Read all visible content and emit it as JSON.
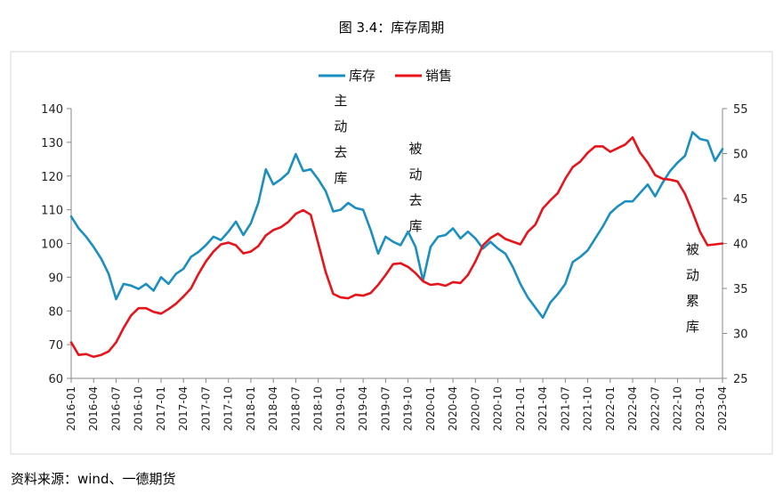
{
  "title": "图 3.4：库存周期",
  "source": "资料来源：wind、一德期货",
  "chart_data": {
    "type": "line",
    "dates": [
      "2016-01",
      "2016-02",
      "2016-03",
      "2016-04",
      "2016-05",
      "2016-06",
      "2016-07",
      "2016-08",
      "2016-09",
      "2016-10",
      "2016-11",
      "2016-12",
      "2017-01",
      "2017-02",
      "2017-03",
      "2017-04",
      "2017-05",
      "2017-06",
      "2017-07",
      "2017-08",
      "2017-09",
      "2017-10",
      "2017-11",
      "2017-12",
      "2018-01",
      "2018-02",
      "2018-03",
      "2018-04",
      "2018-05",
      "2018-06",
      "2018-07",
      "2018-08",
      "2018-09",
      "2018-10",
      "2018-11",
      "2018-12",
      "2019-01",
      "2019-02",
      "2019-03",
      "2019-04",
      "2019-05",
      "2019-06",
      "2019-07",
      "2019-08",
      "2019-09",
      "2019-10",
      "2019-11",
      "2019-12",
      "2020-01",
      "2020-02",
      "2020-03",
      "2020-04",
      "2020-05",
      "2020-06",
      "2020-07",
      "2020-08",
      "2020-09",
      "2020-10",
      "2020-11",
      "2020-12",
      "2021-01",
      "2021-02",
      "2021-03",
      "2021-04",
      "2021-05",
      "2021-06",
      "2021-07",
      "2021-08",
      "2021-09",
      "2021-10",
      "2021-11",
      "2021-12",
      "2022-01",
      "2022-02",
      "2022-03",
      "2022-04",
      "2022-05",
      "2022-06",
      "2022-07",
      "2022-08",
      "2022-09",
      "2022-10",
      "2022-11",
      "2022-12",
      "2023-01",
      "2023-02",
      "2023-03",
      "2023-04"
    ],
    "tick_labels": [
      "2016-01",
      "2016-04",
      "2016-07",
      "2016-10",
      "2017-01",
      "2017-04",
      "2017-07",
      "2017-10",
      "2018-01",
      "2018-04",
      "2018-07",
      "2018-10",
      "2019-01",
      "2019-04",
      "2019-07",
      "2019-10",
      "2020-01",
      "2020-04",
      "2020-07",
      "2020-10",
      "2021-01",
      "2021-04",
      "2021-07",
      "2021-10",
      "2022-01",
      "2022-04",
      "2022-07",
      "2022-10",
      "2023-01",
      "2023-04"
    ],
    "left_axis": {
      "min": 60,
      "max": 140,
      "step": 10,
      "labels": [
        "60",
        "70",
        "80",
        "90",
        "100",
        "110",
        "120",
        "130",
        "140"
      ]
    },
    "right_axis": {
      "min": 25,
      "max": 55,
      "step": 5,
      "labels": [
        "25",
        "30",
        "35",
        "40",
        "45",
        "50",
        "55"
      ]
    },
    "series": [
      {
        "name": "库存",
        "axis": "left",
        "color": "#1a8fc0",
        "values": [
          108,
          104.5,
          102,
          99,
          95.5,
          91,
          83.5,
          88,
          87.5,
          86.5,
          88,
          86,
          90,
          88,
          91,
          92.5,
          96,
          97.5,
          99.5,
          102,
          101,
          103.5,
          106.5,
          102.5,
          106,
          112,
          122,
          117.5,
          119,
          121,
          126.5,
          121.5,
          122,
          119,
          115.5,
          109.5,
          110,
          112,
          110.5,
          110,
          104,
          97,
          102,
          100.5,
          99.5,
          103.5,
          99,
          89,
          99,
          102,
          102.5,
          104.5,
          101.5,
          103.5,
          101.5,
          98.5,
          100.5,
          98.5,
          97,
          93,
          88,
          84,
          81,
          78,
          82.5,
          85,
          88,
          94.5,
          96,
          98,
          101.5,
          105,
          109,
          111,
          112.5,
          112.5,
          115,
          117.5,
          114,
          118,
          121.5,
          124,
          126,
          133,
          131,
          130.5,
          124.5,
          128
        ]
      },
      {
        "name": "销售",
        "axis": "right",
        "color": "#e8141b",
        "values": [
          29,
          27.6,
          27.7,
          27.4,
          27.6,
          28,
          29,
          30.6,
          32,
          32.8,
          32.8,
          32.4,
          32.2,
          32.7,
          33.3,
          34.1,
          35,
          36.6,
          38,
          39.1,
          39.9,
          40.1,
          39.8,
          38.9,
          39.1,
          39.7,
          40.9,
          41.5,
          41.8,
          42.4,
          43.3,
          43.7,
          43.2,
          40,
          36.8,
          34.4,
          34,
          33.9,
          34.3,
          34.2,
          34.5,
          35.4,
          36.5,
          37.7,
          37.8,
          37.4,
          36.7,
          35.8,
          35.4,
          35.5,
          35.3,
          35.7,
          35.6,
          36.5,
          38,
          39.8,
          40.6,
          41.1,
          40.5,
          40.2,
          39.9,
          41.3,
          42.1,
          43.9,
          44.8,
          45.6,
          47.2,
          48.5,
          49.1,
          50.1,
          50.8,
          50.8,
          50.2,
          50.6,
          51,
          51.8,
          50.1,
          49,
          47.6,
          47.2,
          47.1,
          46.9,
          45.5,
          43.5,
          41.3,
          39.8,
          39.9,
          40
        ]
      }
    ],
    "annotations": [
      {
        "text": "主动去库",
        "month_index": 36
      },
      {
        "text": "被动去库",
        "month_index": 46
      },
      {
        "text": "被动累库",
        "month_index": 83
      }
    ],
    "legend_position": "top-center"
  }
}
